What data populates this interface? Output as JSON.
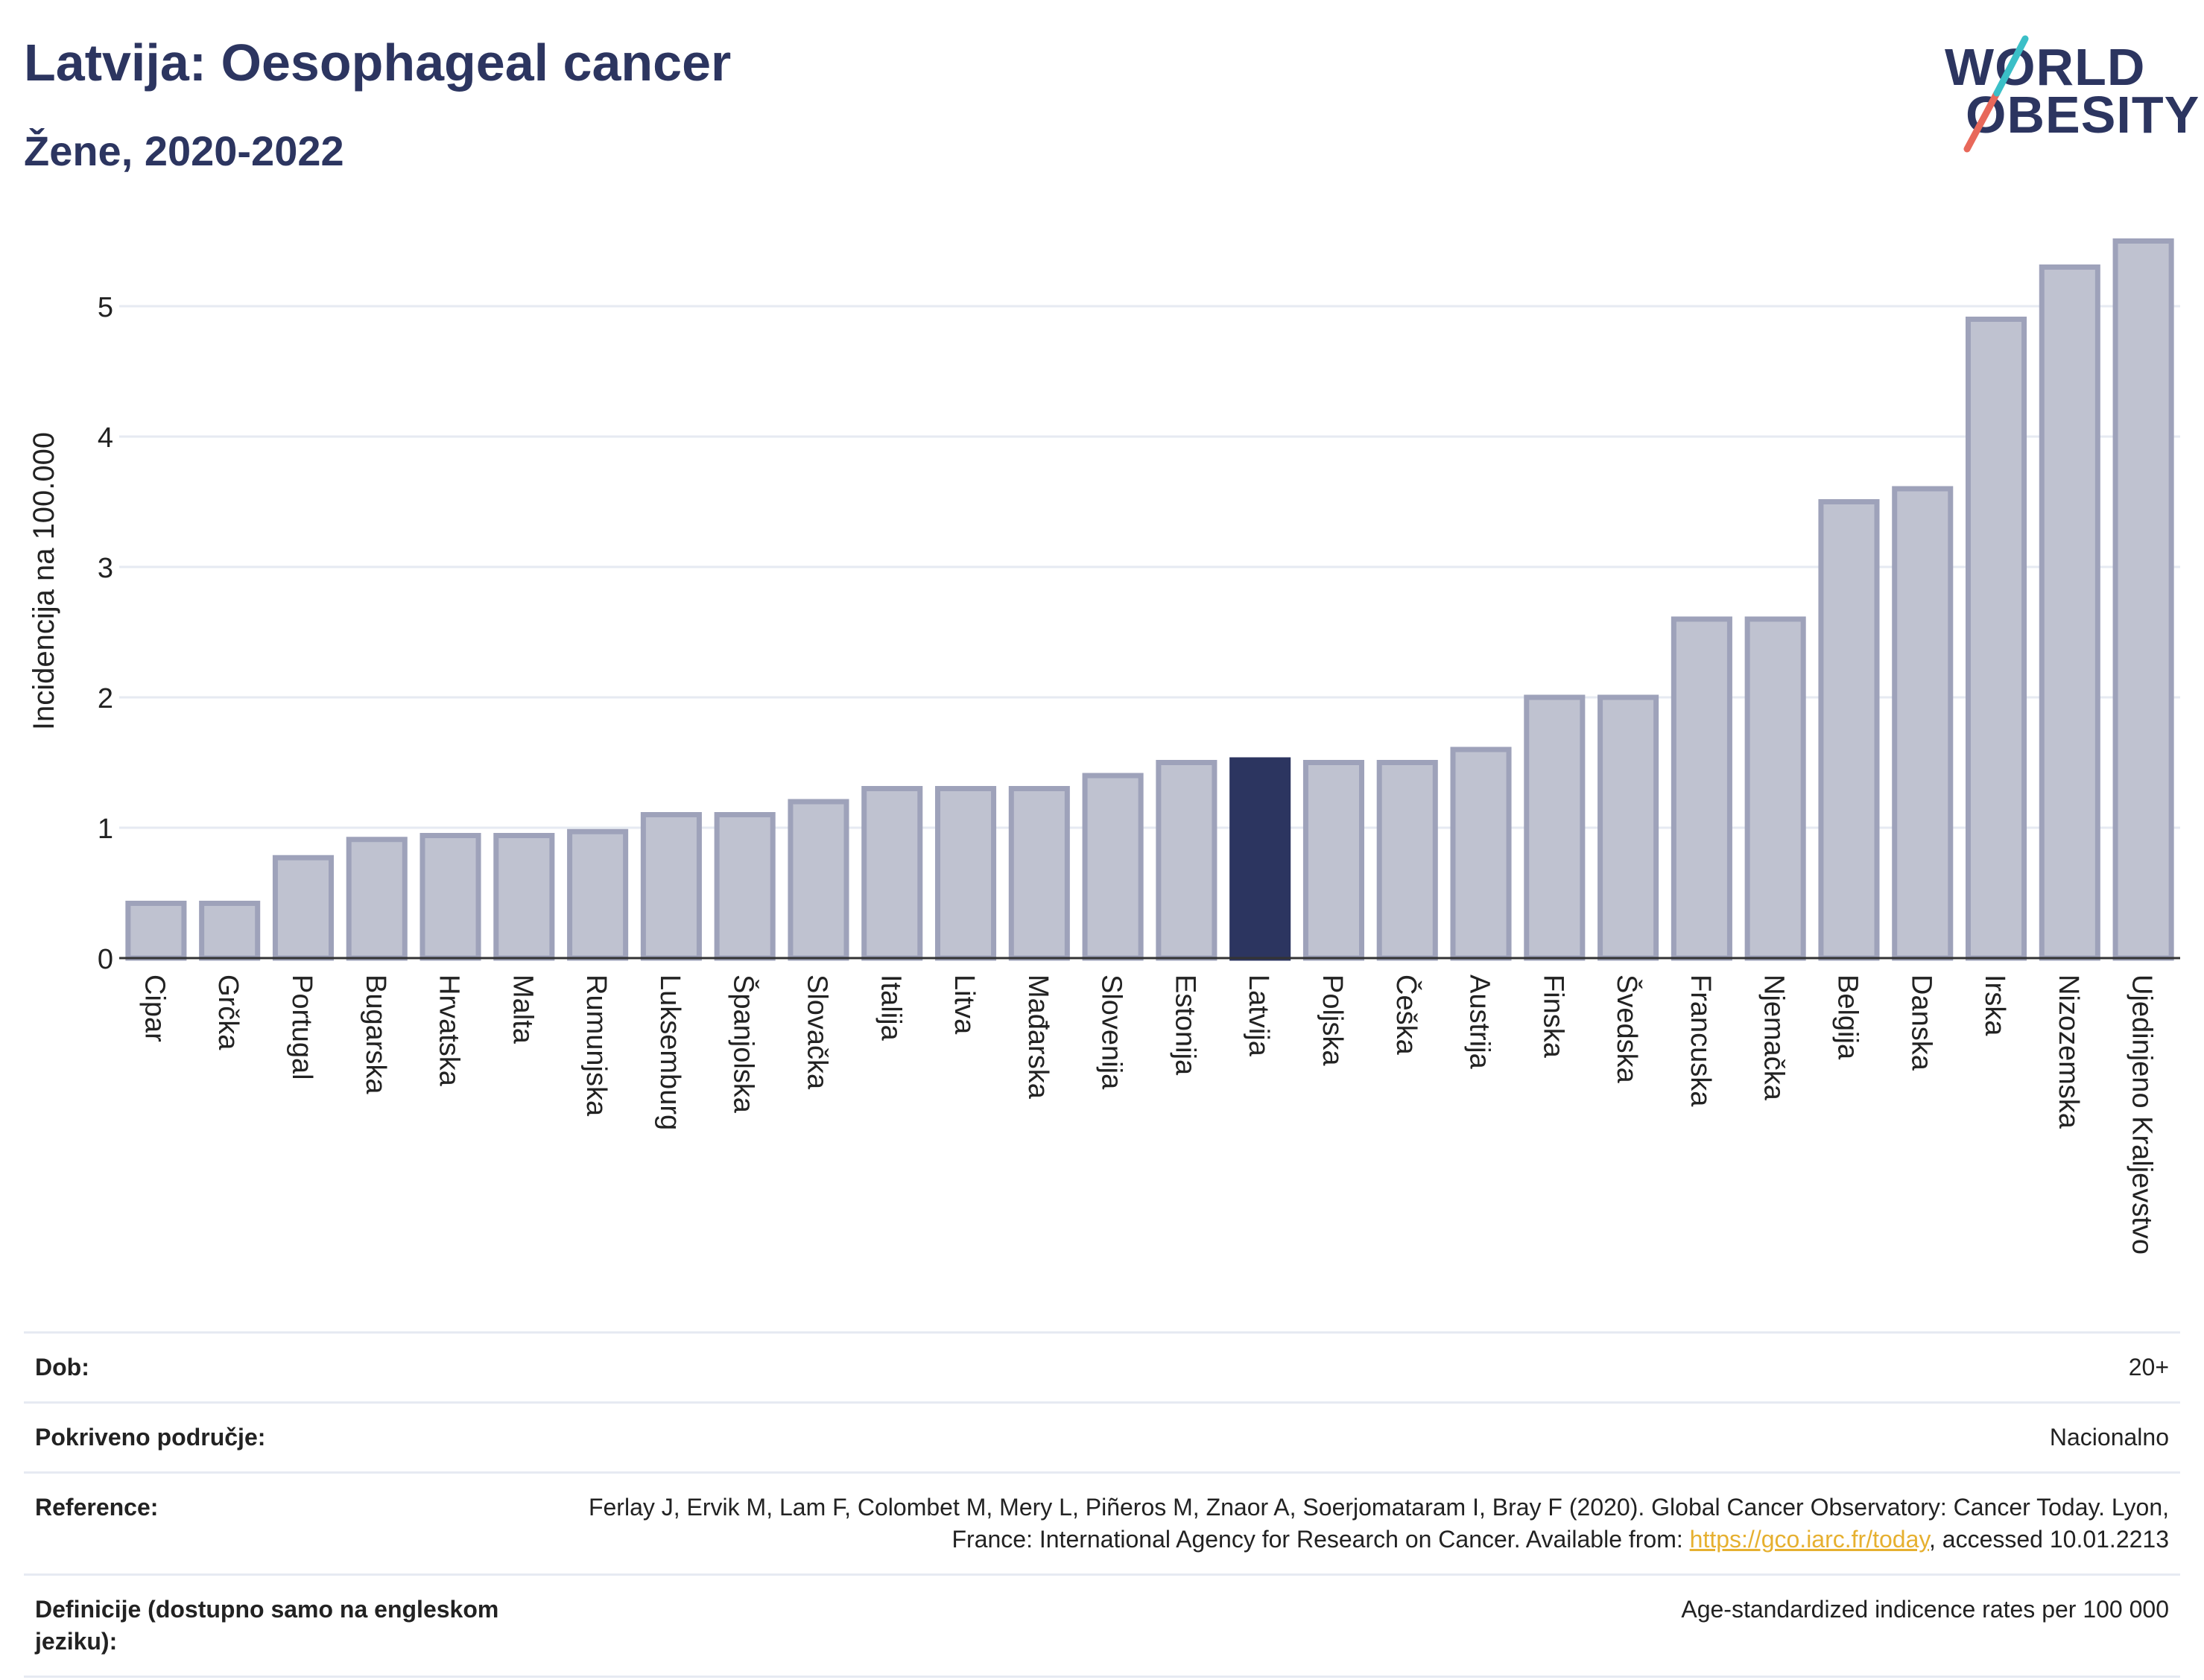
{
  "header": {
    "title": "Latvija: Oesophageal cancer",
    "subtitle": "Žene, 2020-2022"
  },
  "logo": {
    "line1": "WORLD",
    "line2": "OBESITY"
  },
  "colors": {
    "highlight": "#2c3560",
    "bar_fill": "#bfc2d0",
    "bar_stroke": "#9ea2ba",
    "grid": "#e6eaf2",
    "logo_teal": "#3bbfc7",
    "logo_red": "#e8685a"
  },
  "chart_data": {
    "type": "bar",
    "categories": [
      "Cipar",
      "Grčka",
      "Portugal",
      "Bugarska",
      "Hrvatska",
      "Malta",
      "Rumunjska",
      "Luksemburg",
      "Španjolska",
      "Slovačka",
      "Italija",
      "Litva",
      "Mađarska",
      "Slovenija",
      "Estonija",
      "Latvija",
      "Poljska",
      "Češka",
      "Austrija",
      "Finska",
      "Švedska",
      "Francuska",
      "Njemačka",
      "Belgija",
      "Danska",
      "Irska",
      "Nizozemska",
      "Ujedinjeno Kraljevstvo"
    ],
    "values": [
      0.42,
      0.42,
      0.77,
      0.91,
      0.94,
      0.94,
      0.97,
      1.1,
      1.1,
      1.2,
      1.3,
      1.3,
      1.3,
      1.4,
      1.5,
      1.52,
      1.5,
      1.5,
      1.6,
      2.0,
      2.0,
      2.6,
      2.6,
      3.5,
      3.6,
      4.9,
      5.3,
      5.5
    ],
    "highlight": "Latvija",
    "ylabel": "Incidencija na 100.000",
    "xlabel": "",
    "yticks": [
      0,
      1,
      2,
      3,
      4,
      5
    ],
    "ylim": [
      0,
      5.6
    ],
    "grid": true
  },
  "info": {
    "rows": [
      {
        "label": "Dob:",
        "value": "20+"
      },
      {
        "label": "Pokriveno područje:",
        "value": "Nacionalno"
      },
      {
        "label": "Reference:",
        "value_before": "Ferlay J, Ervik M, Lam F, Colombet M, Mery L, Piñeros M, Znaor A, Soerjomataram I, Bray F (2020). Global Cancer Observatory: Cancer Today. Lyon, France: International Agency for Research on Cancer. Available from: ",
        "link": "https://gco.iarc.fr/today",
        "value_after": ", accessed 10.01.2213"
      },
      {
        "label": "Definicije (dostupno samo na engleskom jeziku):",
        "value": "Age-standardized indicence rates per 100 000"
      }
    ]
  }
}
